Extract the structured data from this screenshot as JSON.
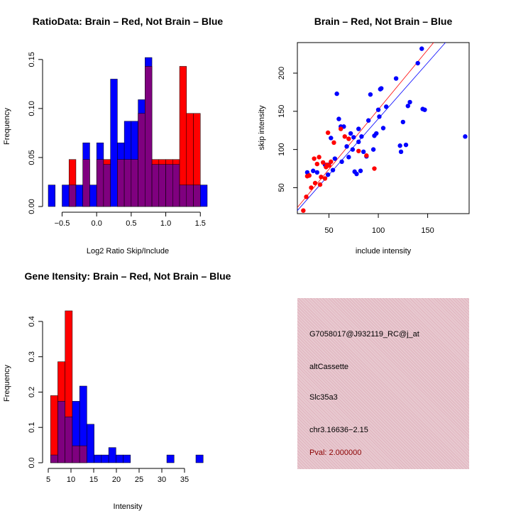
{
  "chart_data": [
    {
      "type": "histogram",
      "id": "ratio",
      "title": "RatioData: Brain – Red, Not Brain – Blue",
      "xlabel": "Log2 Ratio Skip/Include",
      "ylabel": "Frequency",
      "xlim": [
        -0.7,
        1.6
      ],
      "ylim": [
        0,
        0.16
      ],
      "xticks": [
        -0.5,
        0.0,
        0.5,
        1.0,
        1.5
      ],
      "xtick_labels": [
        "−0.5",
        "0.0",
        "0.5",
        "1.0",
        "1.5"
      ],
      "yticks": [
        0.0,
        0.05,
        0.1,
        0.15
      ],
      "ytick_labels": [
        "0.00",
        "0.05",
        "0.10",
        "0.15"
      ],
      "bin_width": 0.1,
      "bins_start": [
        -0.7,
        -0.6,
        -0.5,
        -0.4,
        -0.3,
        -0.2,
        -0.1,
        0.0,
        0.1,
        0.2,
        0.3,
        0.4,
        0.5,
        0.6,
        0.7,
        0.8,
        0.9,
        1.0,
        1.1,
        1.2,
        1.3,
        1.4,
        1.5
      ],
      "series": [
        {
          "name": "Brain",
          "color": "#ff0000",
          "values": [
            0,
            0,
            0,
            0.048,
            0,
            0.048,
            0,
            0.048,
            0.048,
            0,
            0.048,
            0.048,
            0.048,
            0.095,
            0.143,
            0.048,
            0.048,
            0.048,
            0.048,
            0.143,
            0.095,
            0.095,
            0
          ]
        },
        {
          "name": "Not Brain",
          "color": "#0000ff",
          "values": [
            0.022,
            0,
            0.022,
            0.022,
            0.022,
            0.065,
            0.022,
            0.065,
            0.043,
            0.13,
            0.065,
            0.087,
            0.087,
            0.109,
            0.152,
            0.043,
            0.043,
            0.043,
            0.043,
            0.022,
            0.022,
            0.022,
            0.022
          ]
        }
      ],
      "overlap_color": "#7f007f"
    },
    {
      "type": "scatter",
      "id": "scatter",
      "title": "Brain – Red, Not Brain – Blue",
      "xlabel": "include intensity",
      "ylabel": "skip intensity",
      "xlim": [
        18,
        192
      ],
      "ylim": [
        16,
        240
      ],
      "xticks": [
        50,
        100,
        150
      ],
      "yticks": [
        50,
        100,
        150,
        200
      ],
      "series": [
        {
          "name": "Brain",
          "color": "#ff0000",
          "points": [
            [
              24,
              20
            ],
            [
              27,
              38
            ],
            [
              28,
              65
            ],
            [
              30,
              66
            ],
            [
              32,
              50
            ],
            [
              35,
              88
            ],
            [
              36,
              56
            ],
            [
              38,
              81
            ],
            [
              40,
              90
            ],
            [
              41,
              54
            ],
            [
              42,
              64
            ],
            [
              44,
              83
            ],
            [
              46,
              62
            ],
            [
              47,
              77
            ],
            [
              48,
              80
            ],
            [
              49,
              122
            ],
            [
              50,
              79
            ],
            [
              52,
              84
            ],
            [
              55,
              109
            ],
            [
              62,
              127
            ],
            [
              66,
              117
            ],
            [
              70,
              114
            ],
            [
              80,
              98
            ],
            [
              88,
              92
            ],
            [
              96,
              75
            ]
          ]
        },
        {
          "name": "Not Brain",
          "color": "#0000ff",
          "points": [
            [
              28,
              70
            ],
            [
              30,
              66
            ],
            [
              34,
              72
            ],
            [
              38,
              70
            ],
            [
              46,
              80
            ],
            [
              49,
              67
            ],
            [
              50,
              80
            ],
            [
              52,
              115
            ],
            [
              54,
              73
            ],
            [
              56,
              88
            ],
            [
              58,
              173
            ],
            [
              60,
              140
            ],
            [
              62,
              130
            ],
            [
              63,
              84
            ],
            [
              65,
              130
            ],
            [
              68,
              104
            ],
            [
              70,
              90
            ],
            [
              72,
              121
            ],
            [
              74,
              100
            ],
            [
              75,
              116
            ],
            [
              76,
              71
            ],
            [
              78,
              68
            ],
            [
              80,
              127
            ],
            [
              80,
              110
            ],
            [
              82,
              72
            ],
            [
              83,
              117
            ],
            [
              85,
              97
            ],
            [
              88,
              91
            ],
            [
              90,
              138
            ],
            [
              92,
              172
            ],
            [
              95,
              100
            ],
            [
              96,
              118
            ],
            [
              98,
              121
            ],
            [
              100,
              152
            ],
            [
              101,
              143
            ],
            [
              102,
              179
            ],
            [
              103,
              180
            ],
            [
              105,
              128
            ],
            [
              108,
              156
            ],
            [
              118,
              193
            ],
            [
              122,
              105
            ],
            [
              123,
              97
            ],
            [
              125,
              136
            ],
            [
              128,
              106
            ],
            [
              130,
              157
            ],
            [
              132,
              162
            ],
            [
              140,
              213
            ],
            [
              144,
              232
            ],
            [
              145,
              153
            ],
            [
              147,
              152
            ],
            [
              188,
              117
            ]
          ]
        }
      ],
      "lines": [
        {
          "name": "Brain fit",
          "color": "#ff0000",
          "from": [
            18,
            24
          ],
          "to": [
            156,
            240
          ]
        },
        {
          "name": "Not Brain fit",
          "color": "#0000ff",
          "from": [
            18,
            20
          ],
          "to": [
            168,
            240
          ]
        }
      ]
    },
    {
      "type": "histogram",
      "id": "intensity",
      "title": "Gene Itensity: Brain – Red, Not Brain – Blue",
      "xlabel": "Intensity",
      "ylabel": "Frequency",
      "xlim": [
        5,
        40
      ],
      "ylim": [
        0,
        0.45
      ],
      "xticks": [
        5,
        10,
        15,
        20,
        25,
        30,
        35
      ],
      "xtick_labels": [
        "5",
        "10",
        "15",
        "20",
        "25",
        "30",
        "35"
      ],
      "yticks": [
        0.0,
        0.1,
        0.2,
        0.3,
        0.4
      ],
      "ytick_labels": [
        "0.0",
        "0.1",
        "0.2",
        "0.3",
        "0.4"
      ],
      "bin_width": 1.6,
      "bins_start": [
        5.5,
        7.1,
        8.7,
        10.3,
        11.9,
        13.5,
        15.1,
        16.7,
        18.3,
        19.9,
        21.5,
        23.1,
        24.7,
        26.3,
        27.9,
        29.5,
        31.1,
        32.7,
        34.3,
        35.9,
        37.5
      ],
      "series": [
        {
          "name": "Brain",
          "color": "#ff0000",
          "values": [
            0.19,
            0.286,
            0.43,
            0.048,
            0.048,
            0,
            0,
            0,
            0,
            0,
            0,
            0,
            0,
            0,
            0,
            0,
            0,
            0,
            0,
            0,
            0
          ]
        },
        {
          "name": "Not Brain",
          "color": "#0000ff",
          "values": [
            0.022,
            0.174,
            0.13,
            0.174,
            0.217,
            0.109,
            0.022,
            0.022,
            0.043,
            0.022,
            0.022,
            0,
            0,
            0,
            0,
            0,
            0.022,
            0,
            0,
            0,
            0.022
          ]
        }
      ],
      "overlap_color": "#7f007f"
    }
  ],
  "info": {
    "probe_id": "G7058017@J932119_RC@j_at",
    "event_type": "altCassette",
    "gene": "Slc35a3",
    "location": "chr3.16636−2.15",
    "pval": "Pval: 2.000000"
  }
}
